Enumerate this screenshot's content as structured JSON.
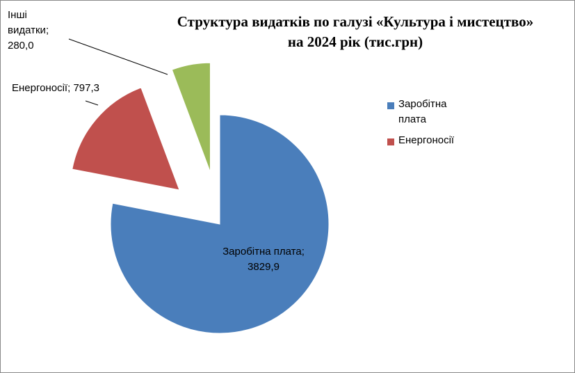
{
  "chart_data": {
    "type": "pie",
    "title": [
      "Структура  видатків по галузі «Культура і мистецтво»",
      "на 2024 рік (тис.грн)"
    ],
    "categories": [
      "Заробітна плата",
      "Енергоносії",
      "Інші видатки"
    ],
    "values": [
      3829.9,
      797.3,
      280.0
    ],
    "value_labels": [
      "3829,9",
      "797,3",
      "280,0"
    ],
    "label_separator": "; ",
    "colors": [
      "#4a7ebb",
      "#c0504d",
      "#9bbb59"
    ],
    "exploded": true,
    "legend": {
      "position": "right",
      "entries": [
        "Заробітна плата",
        "Енергоносії"
      ]
    }
  }
}
